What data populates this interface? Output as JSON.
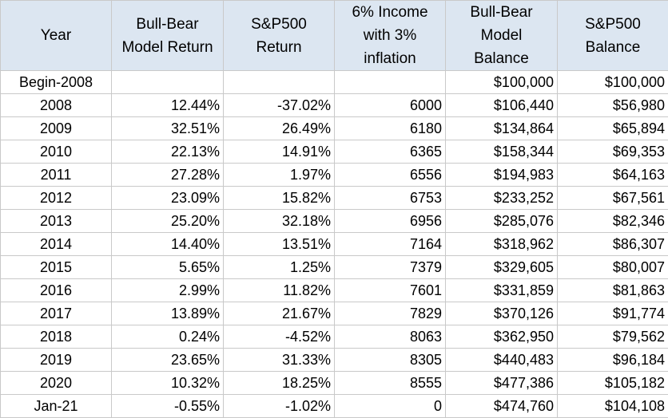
{
  "headers": [
    [
      "Year"
    ],
    [
      "Bull-Bear",
      "Model Return"
    ],
    [
      "S&P500",
      "Return"
    ],
    [
      "6% Income",
      "with 3%",
      "inflation"
    ],
    [
      "Bull-Bear",
      "Model",
      "Balance"
    ],
    [
      "S&P500",
      "Balance"
    ]
  ],
  "rows": [
    {
      "year": "Begin-2008",
      "model_return": "",
      "sp_return": "",
      "income": "",
      "model_balance": "$100,000",
      "sp_balance": "$100,000"
    },
    {
      "year": "2008",
      "model_return": "12.44%",
      "sp_return": "-37.02%",
      "income": "6000",
      "model_balance": "$106,440",
      "sp_balance": "$56,980"
    },
    {
      "year": "2009",
      "model_return": "32.51%",
      "sp_return": "26.49%",
      "income": "6180",
      "model_balance": "$134,864",
      "sp_balance": "$65,894"
    },
    {
      "year": "2010",
      "model_return": "22.13%",
      "sp_return": "14.91%",
      "income": "6365",
      "model_balance": "$158,344",
      "sp_balance": "$69,353"
    },
    {
      "year": "2011",
      "model_return": "27.28%",
      "sp_return": "1.97%",
      "income": "6556",
      "model_balance": "$194,983",
      "sp_balance": "$64,163"
    },
    {
      "year": "2012",
      "model_return": "23.09%",
      "sp_return": "15.82%",
      "income": "6753",
      "model_balance": "$233,252",
      "sp_balance": "$67,561"
    },
    {
      "year": "2013",
      "model_return": "25.20%",
      "sp_return": "32.18%",
      "income": "6956",
      "model_balance": "$285,076",
      "sp_balance": "$82,346"
    },
    {
      "year": "2014",
      "model_return": "14.40%",
      "sp_return": "13.51%",
      "income": "7164",
      "model_balance": "$318,962",
      "sp_balance": "$86,307"
    },
    {
      "year": "2015",
      "model_return": "5.65%",
      "sp_return": "1.25%",
      "income": "7379",
      "model_balance": "$329,605",
      "sp_balance": "$80,007"
    },
    {
      "year": "2016",
      "model_return": "2.99%",
      "sp_return": "11.82%",
      "income": "7601",
      "model_balance": "$331,859",
      "sp_balance": "$81,863"
    },
    {
      "year": "2017",
      "model_return": "13.89%",
      "sp_return": "21.67%",
      "income": "7829",
      "model_balance": "$370,126",
      "sp_balance": "$91,774"
    },
    {
      "year": "2018",
      "model_return": "0.24%",
      "sp_return": "-4.52%",
      "income": "8063",
      "model_balance": "$362,950",
      "sp_balance": "$79,562"
    },
    {
      "year": "2019",
      "model_return": "23.65%",
      "sp_return": "31.33%",
      "income": "8305",
      "model_balance": "$440,483",
      "sp_balance": "$96,184"
    },
    {
      "year": "2020",
      "model_return": "10.32%",
      "sp_return": "18.25%",
      "income": "8555",
      "model_balance": "$477,386",
      "sp_balance": "$105,182"
    },
    {
      "year": "Jan-21",
      "model_return": "-0.55%",
      "sp_return": "-1.02%",
      "income": "0",
      "model_balance": "$474,760",
      "sp_balance": "$104,108"
    }
  ],
  "colors": {
    "header_fill": "#dce6f1",
    "grid_line": "#c9c9c9",
    "text": "#000000"
  }
}
